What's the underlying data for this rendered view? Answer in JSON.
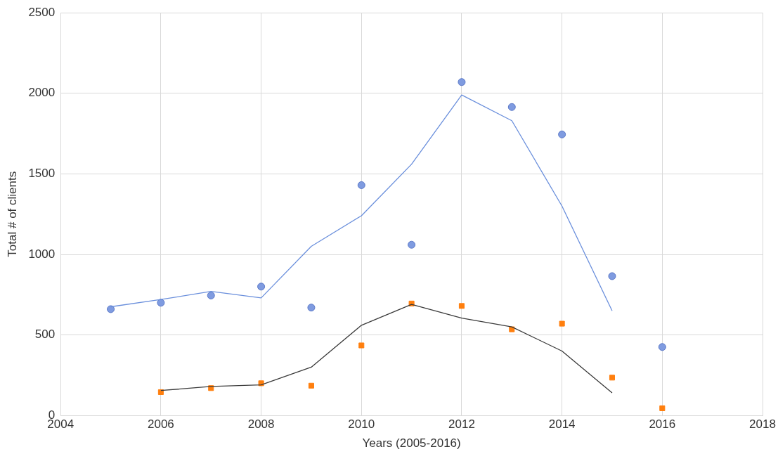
{
  "chart_data": {
    "type": "scatter",
    "xlabel": "Years (2005-2016)",
    "ylabel": "Total # of clients",
    "xlim": [
      2004,
      2018
    ],
    "xticks": [
      2004,
      2006,
      2008,
      2010,
      2012,
      2014,
      2016,
      2018
    ],
    "ylim": [
      0,
      2500
    ],
    "yticks": [
      0,
      500,
      1000,
      1500,
      2000,
      2500
    ],
    "grid": true,
    "legend": false,
    "series": [
      {
        "marker": "circle",
        "color": "#7f9be0",
        "x": [
          2005,
          2006,
          2007,
          2008,
          2009,
          2010,
          2011,
          2012,
          2013,
          2014,
          2015,
          2016
        ],
        "values": [
          660,
          700,
          745,
          800,
          670,
          1430,
          1060,
          2070,
          1915,
          1745,
          865,
          425
        ]
      },
      {
        "type": "line",
        "marker": "none",
        "color": "#6a8fdc",
        "x": [
          2005,
          2006,
          2007,
          2008,
          2009,
          2010,
          2011,
          2012,
          2013,
          2014,
          2015
        ],
        "values": [
          675,
          720,
          770,
          730,
          1050,
          1240,
          1560,
          1990,
          1830,
          1300,
          650
        ]
      },
      {
        "marker": "square",
        "color": "#ff7f0e",
        "x": [
          2006,
          2007,
          2008,
          2009,
          2010,
          2011,
          2012,
          2013,
          2014,
          2015,
          2016
        ],
        "values": [
          145,
          170,
          200,
          185,
          435,
          695,
          680,
          535,
          570,
          235,
          45
        ]
      },
      {
        "type": "line",
        "marker": "none",
        "color": "#3a3a3a",
        "x": [
          2006,
          2007,
          2008,
          2009,
          2010,
          2011,
          2012,
          2013,
          2014,
          2015
        ],
        "values": [
          155,
          180,
          190,
          300,
          560,
          690,
          605,
          550,
          400,
          140
        ]
      }
    ]
  }
}
